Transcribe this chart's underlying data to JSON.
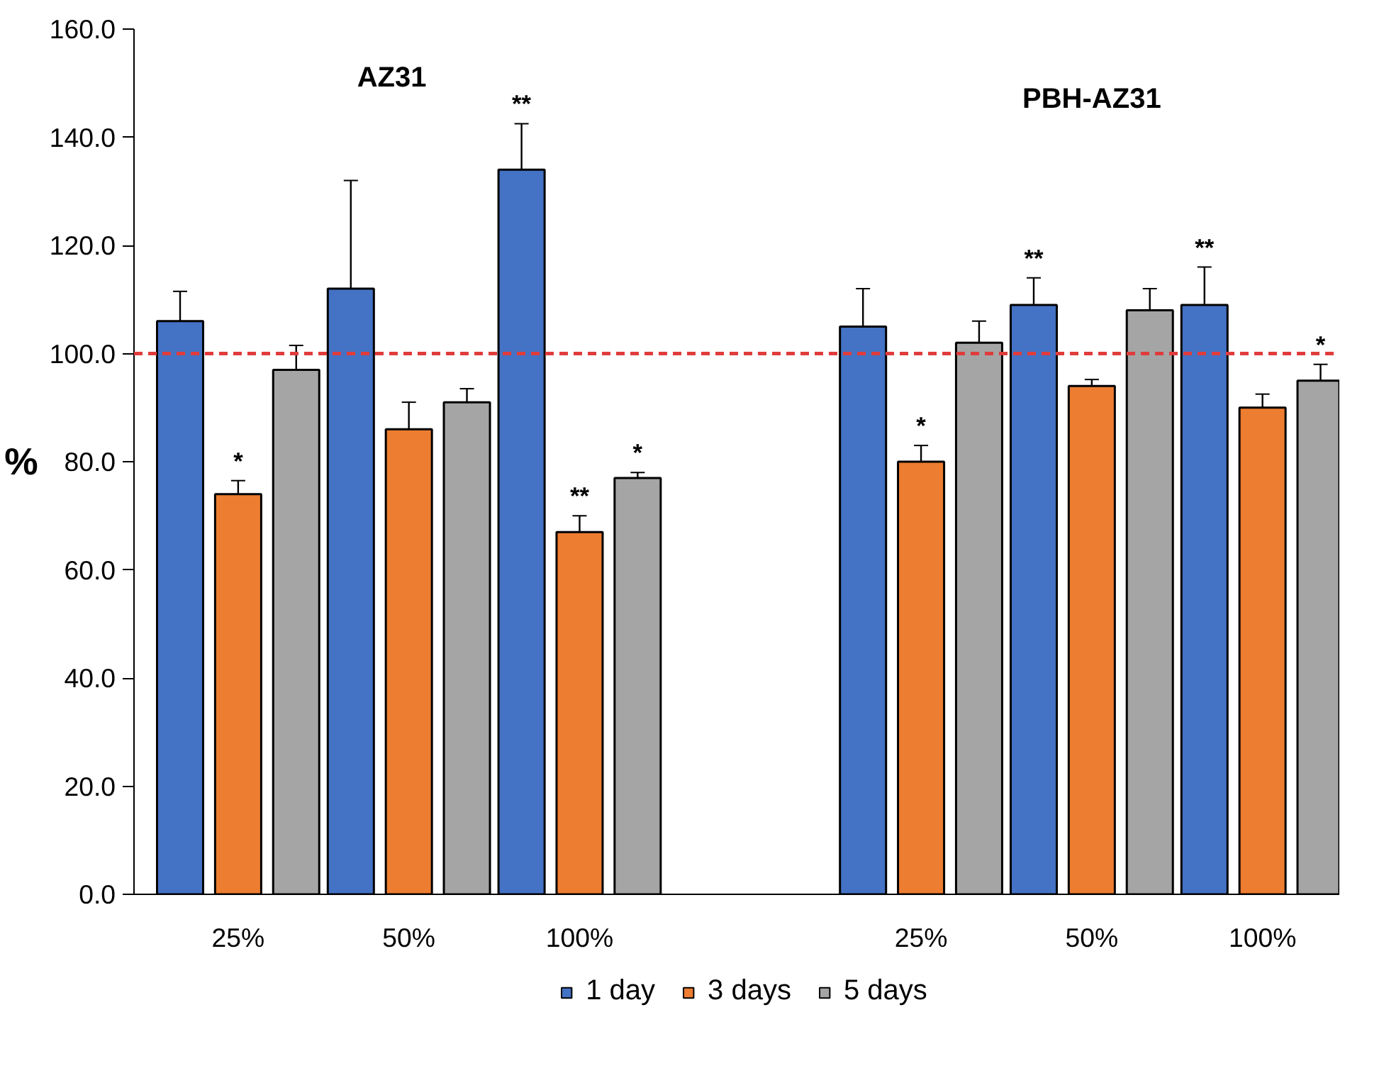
{
  "chart_data": {
    "type": "bar",
    "ylabel": "%",
    "categories": [
      "25%",
      "50%",
      "100%",
      null,
      "25%",
      "50%",
      "100%"
    ],
    "ylim": [
      0,
      160
    ],
    "yticks": [
      {
        "value": 0,
        "label": "0.0"
      },
      {
        "value": 20,
        "label": "20.0"
      },
      {
        "value": 40,
        "label": "40.0"
      },
      {
        "value": 60,
        "label": "60.0"
      },
      {
        "value": 80,
        "label": "80.0"
      },
      {
        "value": 100,
        "label": "100.0"
      },
      {
        "value": 120,
        "label": "120.0"
      },
      {
        "value": 140,
        "label": "140.0"
      },
      {
        "value": 160,
        "label": "160.0"
      }
    ],
    "legend": "bottom",
    "series": [
      {
        "name": "1 day",
        "color": "#4472c4",
        "values": [
          106,
          112,
          134,
          null,
          105,
          109,
          109
        ],
        "errors": [
          5.5,
          20,
          8.5,
          null,
          7,
          5,
          7
        ]
      },
      {
        "name": "3 days",
        "color": "#ed7d31",
        "values": [
          74,
          86,
          67,
          null,
          80,
          94,
          90
        ],
        "errors": [
          2.5,
          5,
          3,
          null,
          3,
          1.2,
          2.5
        ]
      },
      {
        "name": "5 days",
        "color": "#a5a5a5",
        "values": [
          97,
          91,
          77,
          null,
          102,
          108,
          95
        ],
        "errors": [
          4.5,
          2.5,
          1,
          null,
          4,
          4,
          3
        ]
      }
    ],
    "ref_lines": [
      {
        "axis": "y",
        "value": 100,
        "color": "#e03c3c",
        "line_style": "dashed"
      }
    ],
    "annotations": [
      "AZ31",
      "PBH-AZ31",
      "*",
      "**",
      "**",
      "*",
      "*",
      "**",
      "**",
      "*"
    ]
  }
}
